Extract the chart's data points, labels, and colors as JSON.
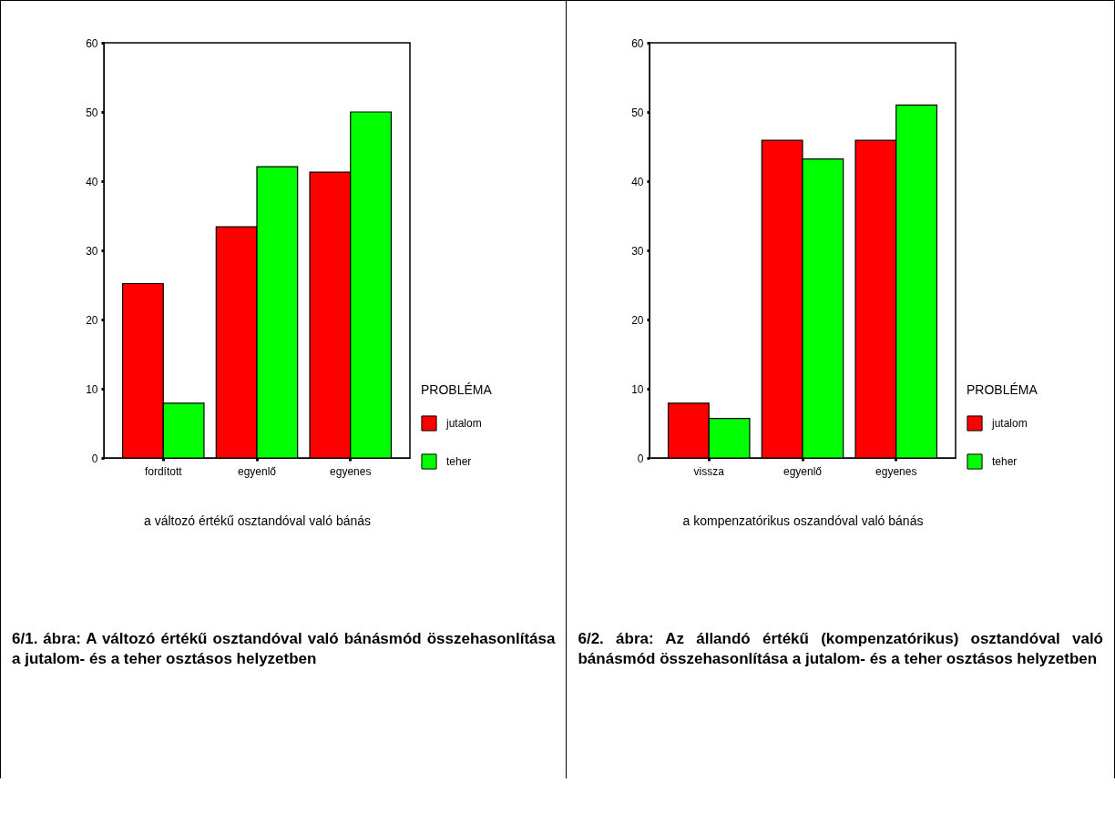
{
  "chart_data": [
    {
      "type": "bar",
      "categories": [
        "fordított",
        "egyenlő",
        "egyenes"
      ],
      "xlabel": "a változó értékű osztandóval való bánás",
      "legend_title": "PROBLÉMA",
      "legend": "right",
      "ylim": [
        0,
        60
      ],
      "yticks": [
        0,
        10,
        20,
        30,
        40,
        50,
        60
      ],
      "grid": false,
      "series": [
        {
          "name": "jutalom",
          "color": "#ff0000",
          "values": [
            25.2,
            33.4,
            41.3
          ]
        },
        {
          "name": "teher",
          "color": "#00ff00",
          "values": [
            7.9,
            42.1,
            50.0
          ]
        }
      ],
      "annotations": [
        "6/1. ábra: A változó értékű osztandóval való bánásmód összehasonlítása a jutalom- és a teher osztásos helyzetben"
      ]
    },
    {
      "type": "bar",
      "categories": [
        "vissza",
        "egyenlő",
        "egyenes"
      ],
      "xlabel": "a kompenzatórikus oszandóval való bánás",
      "legend_title": "PROBLÉMA",
      "legend": "right",
      "ylim": [
        0,
        60
      ],
      "yticks": [
        0,
        10,
        20,
        30,
        40,
        50,
        60
      ],
      "grid": false,
      "series": [
        {
          "name": "jutalom",
          "color": "#ff0000",
          "values": [
            7.9,
            45.9,
            45.9
          ]
        },
        {
          "name": "teher",
          "color": "#00ff00",
          "values": [
            5.7,
            43.2,
            51.0
          ]
        }
      ],
      "annotations": [
        "6/2. ábra: Az állandó értékű (kompenzatórikus) osztandóval való bánásmód összehasonlítása a jutalom- és a teher osztásos helyzetben"
      ]
    }
  ]
}
